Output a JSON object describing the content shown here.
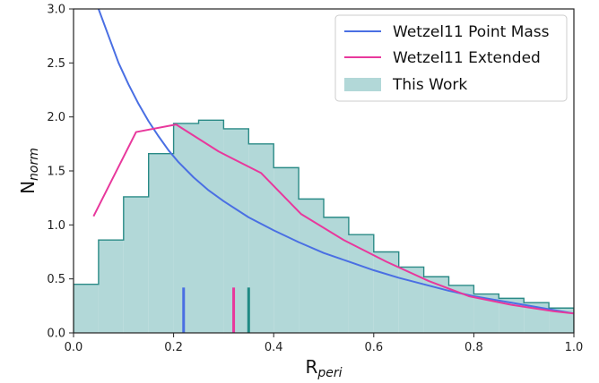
{
  "chart_data": {
    "type": "line",
    "xlabel": "R",
    "xlabel_sub": "peri",
    "ylabel": "N",
    "ylabel_sub": "norm",
    "xlim": [
      0.0,
      1.0
    ],
    "ylim": [
      0.0,
      3.0
    ],
    "x_ticks": [
      "0.0",
      "0.2",
      "0.4",
      "0.6",
      "0.8",
      "1.0"
    ],
    "y_ticks": [
      "0.0",
      "0.5",
      "1.0",
      "1.5",
      "2.0",
      "2.5",
      "3.0"
    ],
    "grid": false,
    "legend_position": "top-right",
    "series": [
      {
        "name": "Wetzel11 Point Mass",
        "kind": "line",
        "color": "#4a6fe3",
        "x": [
          0.05,
          0.07,
          0.09,
          0.11,
          0.13,
          0.15,
          0.17,
          0.19,
          0.21,
          0.24,
          0.27,
          0.3,
          0.35,
          0.4,
          0.45,
          0.5,
          0.55,
          0.6,
          0.65,
          0.7,
          0.75,
          0.8,
          0.85,
          0.9,
          0.95,
          1.0
        ],
        "y": [
          3.0,
          2.75,
          2.5,
          2.3,
          2.12,
          1.96,
          1.82,
          1.69,
          1.58,
          1.44,
          1.32,
          1.22,
          1.07,
          0.95,
          0.84,
          0.74,
          0.66,
          0.58,
          0.51,
          0.45,
          0.39,
          0.34,
          0.3,
          0.26,
          0.22,
          0.18
        ]
      },
      {
        "name": "Wetzel11 Extended",
        "kind": "line",
        "color": "#e8389c",
        "x": [
          0.04,
          0.125,
          0.205,
          0.29,
          0.375,
          0.455,
          0.54,
          0.625,
          0.71,
          0.79,
          0.875,
          0.96,
          1.0
        ],
        "y": [
          1.08,
          1.86,
          1.93,
          1.68,
          1.48,
          1.1,
          0.86,
          0.66,
          0.48,
          0.34,
          0.26,
          0.2,
          0.18
        ]
      },
      {
        "name": "This Work",
        "kind": "step-histogram",
        "color": "#b2d8d8",
        "edge_color": "#2a8a86",
        "bin_edges": [
          0.0,
          0.05,
          0.1,
          0.15,
          0.2,
          0.25,
          0.3,
          0.35,
          0.4,
          0.45,
          0.5,
          0.55,
          0.6,
          0.65,
          0.7,
          0.75,
          0.8,
          0.85,
          0.9,
          0.95,
          1.0
        ],
        "values": [
          0.45,
          0.86,
          1.26,
          1.66,
          1.94,
          1.97,
          1.89,
          1.75,
          1.53,
          1.24,
          1.07,
          0.91,
          0.75,
          0.61,
          0.52,
          0.44,
          0.36,
          0.32,
          0.28,
          0.23
        ]
      }
    ],
    "markers": [
      {
        "x": 0.22,
        "y0": 0.0,
        "y1": 0.42,
        "color": "#4a6fe3"
      },
      {
        "x": 0.32,
        "y0": 0.0,
        "y1": 0.42,
        "color": "#e8389c"
      },
      {
        "x": 0.35,
        "y0": 0.0,
        "y1": 0.42,
        "color": "#1f8a84"
      }
    ]
  }
}
